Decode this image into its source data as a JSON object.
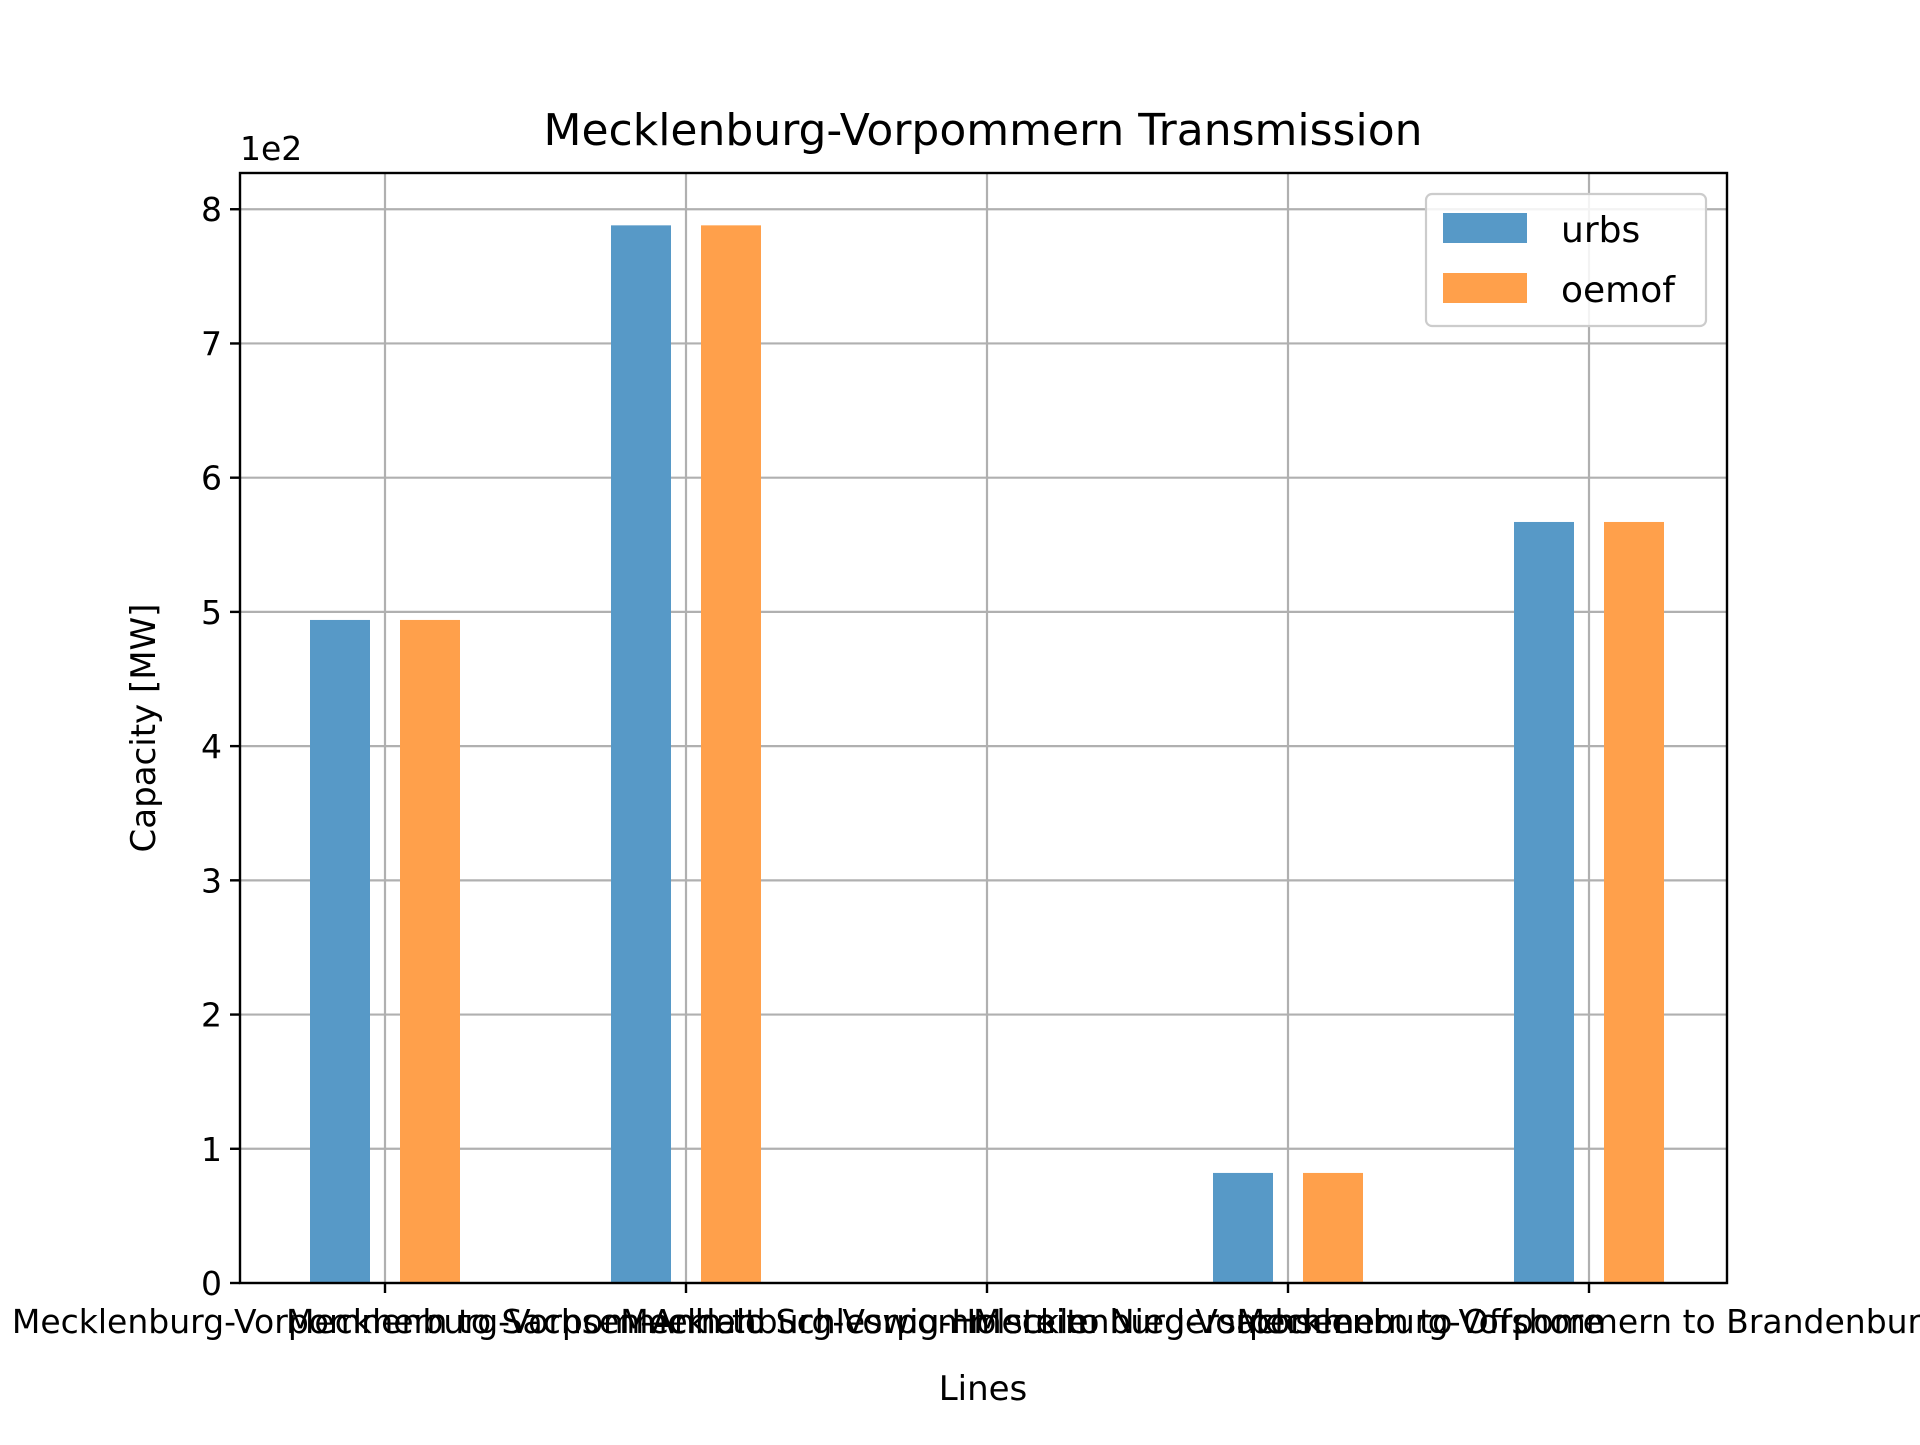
{
  "chart_data": {
    "type": "bar",
    "title": "Mecklenburg-Vorpommern Transmission",
    "xlabel": "Lines",
    "ylabel": "Capacity [MW]",
    "y_scale_label": "1e2",
    "categories": [
      "Mecklenburg-Vorpommern to Sachsen-Anhalt",
      "Mecklenburg-Vorpommern to Schleswig-Holstein",
      "Mecklenburg-Vorpommern to Niedersachsen",
      "Mecklenburg-Vorpommern to Offshore",
      "Mecklenburg-Vorpommern to Brandenburg"
    ],
    "series": [
      {
        "name": "urbs",
        "color": "#5799c7",
        "values": [
          494,
          788,
          0,
          82,
          567
        ]
      },
      {
        "name": "oemof",
        "color": "#ffa04b",
        "values": [
          494,
          788,
          0,
          82,
          567
        ]
      }
    ],
    "ylim": [
      0,
      827
    ],
    "yticks": [
      0,
      100,
      200,
      300,
      400,
      500,
      600,
      700,
      800
    ],
    "ytick_labels": [
      "0",
      "1",
      "2",
      "3",
      "4",
      "5",
      "6",
      "7",
      "8"
    ],
    "grid": true,
    "legend_position": "top-right"
  }
}
